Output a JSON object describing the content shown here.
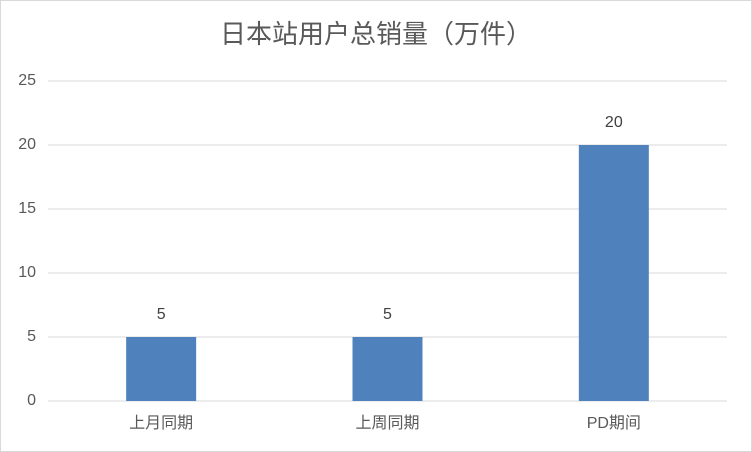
{
  "chart_data": {
    "type": "bar",
    "title": "日本站用户总销量（万件）",
    "categories": [
      "上月同期",
      "上周同期",
      "PD期间"
    ],
    "values": [
      5,
      5,
      20
    ],
    "color": "#4f81bd",
    "ylim": [
      0,
      25
    ],
    "yticks": [
      0,
      5,
      10,
      15,
      20,
      25
    ],
    "grid": true
  }
}
